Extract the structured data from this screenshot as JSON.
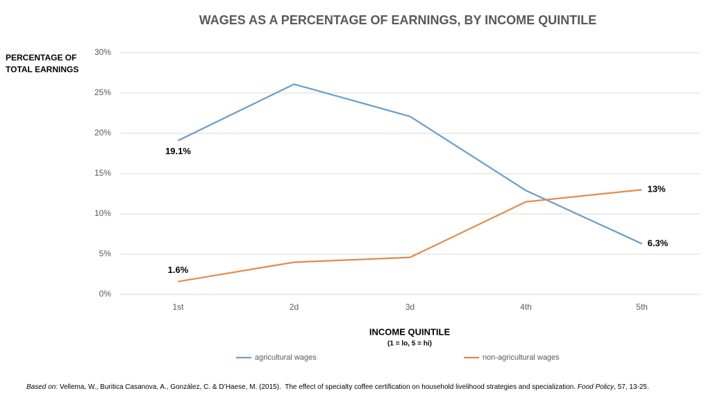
{
  "chart_data": {
    "type": "line",
    "title": "WAGES AS A PERCENTAGE OF EARNINGS, BY INCOME QUINTILE",
    "y_label": [
      "PERCENTAGE OF",
      "TOTAL EARNINGS"
    ],
    "x_label": "INCOME QUINTILE",
    "x_sublabel": "(1 = lo, 5 = hi)",
    "categories": [
      "1st",
      "2d",
      "3d",
      "4th",
      "5th"
    ],
    "series": [
      {
        "name": "agricultural wages",
        "color": "#6a9fcb",
        "values": [
          19.1,
          26.1,
          22.1,
          12.9,
          6.3
        ],
        "value_labels": [
          "19.1%",
          null,
          null,
          null,
          "6.3%"
        ]
      },
      {
        "name": "non-agricultural wages",
        "color": "#e48a4a",
        "values": [
          1.6,
          4.0,
          4.6,
          11.5,
          13
        ],
        "value_labels": [
          "1.6%",
          null,
          null,
          null,
          "13%"
        ]
      }
    ],
    "ylim": [
      0,
      30
    ],
    "yticks": [
      {
        "value": 0,
        "label": "0%"
      },
      {
        "value": 5,
        "label": "5%"
      },
      {
        "value": 10,
        "label": "10%"
      },
      {
        "value": 15,
        "label": "15%"
      },
      {
        "value": 20,
        "label": "20%"
      },
      {
        "value": 25,
        "label": "25%"
      },
      {
        "value": 30,
        "label": "30%"
      }
    ],
    "grid": true,
    "source": {
      "prefix": "Based on:",
      "text": " Vellema, W., Buritica Casanova, A., González, C. & D’Haese, M. (2015).  The effect of specialty coffee certification on household livelihood strategies and specialization. ",
      "journal": "Food Policy",
      "suffix": ", 57, 13-25."
    }
  }
}
